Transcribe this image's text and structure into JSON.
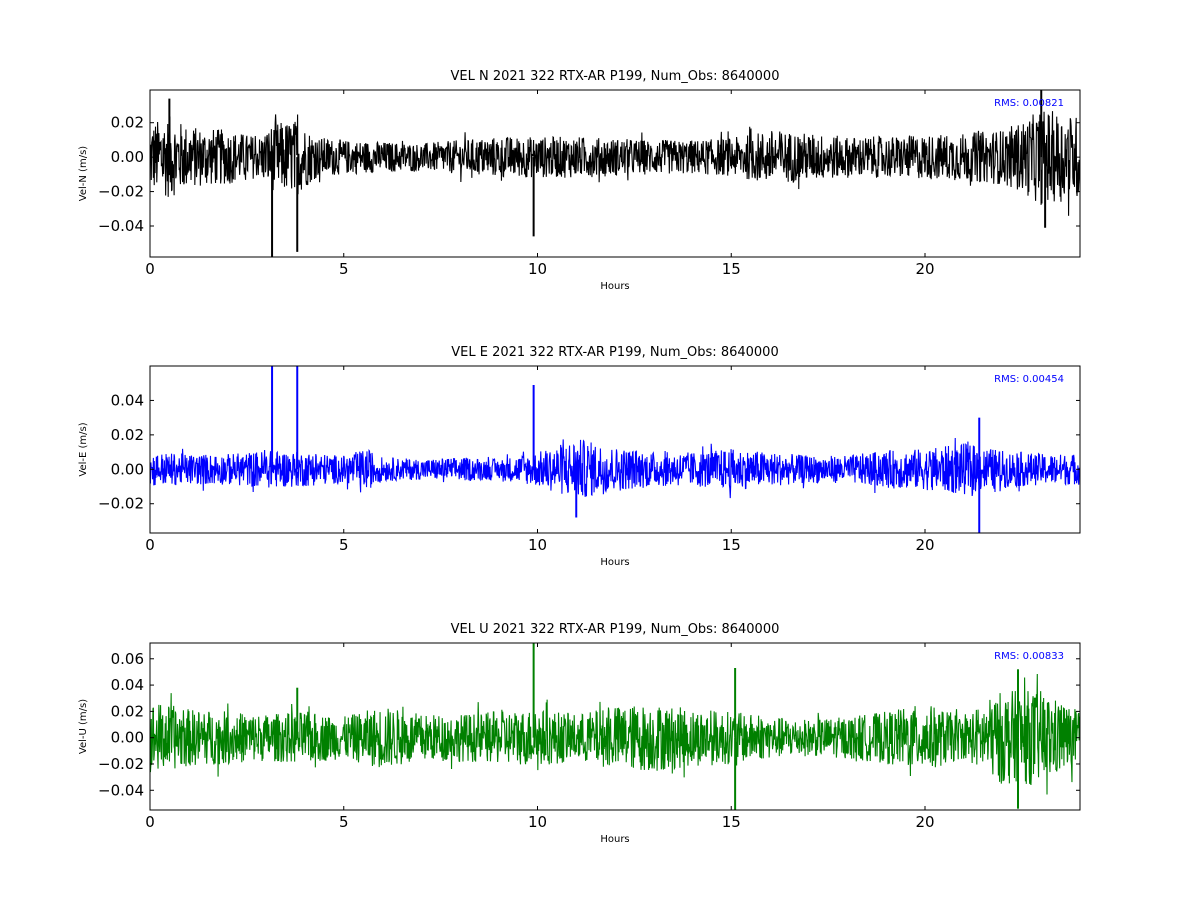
{
  "chart_data": [
    {
      "type": "line",
      "title": "VEL N 2021 322 RTX-AR  P199, Num_Obs: 8640000",
      "xlabel": "Hours",
      "ylabel": "Vel-N (m/s)",
      "xlim": [
        0,
        24
      ],
      "ylim": [
        -0.058,
        0.039
      ],
      "xticks": [
        0,
        5,
        10,
        15,
        20
      ],
      "yticks": [
        -0.04,
        -0.02,
        0.0,
        0.02
      ],
      "ytick_labels": [
        "−0.04",
        "−0.02",
        "0.00",
        "0.02"
      ],
      "color": "#000000",
      "rms_label": "RMS:  0.00821",
      "rms_color": "#0000ff",
      "grid": false,
      "series": [
        {
          "values_note_amplitude": [
            [
              0,
              0.02
            ],
            [
              0.5,
              0.024
            ],
            [
              1,
              0.018
            ],
            [
              2,
              0.016
            ],
            [
              2.8,
              0.012
            ],
            [
              3.2,
              0.02
            ],
            [
              3.8,
              0.022
            ],
            [
              4.3,
              0.012
            ],
            [
              5,
              0.01
            ],
            [
              6,
              0.009
            ],
            [
              7,
              0.008
            ],
            [
              8,
              0.01
            ],
            [
              9,
              0.012
            ],
            [
              10,
              0.012
            ],
            [
              11,
              0.012
            ],
            [
              12,
              0.011
            ],
            [
              13,
              0.01
            ],
            [
              14,
              0.01
            ],
            [
              15,
              0.011
            ],
            [
              16,
              0.016
            ],
            [
              17,
              0.014
            ],
            [
              18,
              0.012
            ],
            [
              19,
              0.012
            ],
            [
              20,
              0.013
            ],
            [
              21,
              0.014
            ],
            [
              22,
              0.016
            ],
            [
              22.6,
              0.022
            ],
            [
              23,
              0.028
            ],
            [
              24,
              0.024
            ]
          ],
          "spikes": [
            [
              0.5,
              0.034
            ],
            [
              3.15,
              -0.058
            ],
            [
              3.8,
              -0.055
            ],
            [
              9.9,
              -0.046
            ],
            [
              23.0,
              0.039
            ],
            [
              23.1,
              -0.041
            ]
          ]
        }
      ]
    },
    {
      "type": "line",
      "title": "VEL E 2021 322 RTX-AR  P199, Num_Obs: 8640000",
      "xlabel": "Hours",
      "ylabel": "Vel-E (m/s)",
      "xlim": [
        0,
        24
      ],
      "ylim": [
        -0.037,
        0.06
      ],
      "xticks": [
        0,
        5,
        10,
        15,
        20
      ],
      "yticks": [
        -0.02,
        0.0,
        0.02,
        0.04
      ],
      "ytick_labels": [
        "−0.02",
        "0.00",
        "0.02",
        "0.04"
      ],
      "color": "#0000ff",
      "rms_label": "RMS:  0.00454",
      "rms_color": "#0000ff",
      "grid": false,
      "series": [
        {
          "values_note_amplitude": [
            [
              0,
              0.01
            ],
            [
              1,
              0.009
            ],
            [
              2,
              0.009
            ],
            [
              3,
              0.011
            ],
            [
              4,
              0.01
            ],
            [
              5,
              0.008
            ],
            [
              5.6,
              0.012
            ],
            [
              6,
              0.007
            ],
            [
              7,
              0.006
            ],
            [
              8,
              0.007
            ],
            [
              9,
              0.006
            ],
            [
              10,
              0.01
            ],
            [
              11,
              0.018
            ],
            [
              12,
              0.013
            ],
            [
              13,
              0.01
            ],
            [
              14,
              0.01
            ],
            [
              15,
              0.012
            ],
            [
              16,
              0.01
            ],
            [
              17,
              0.008
            ],
            [
              18,
              0.008
            ],
            [
              19,
              0.011
            ],
            [
              20,
              0.012
            ],
            [
              21,
              0.015
            ],
            [
              22,
              0.011
            ],
            [
              23,
              0.009
            ],
            [
              24,
              0.009
            ]
          ],
          "spikes": [
            [
              3.15,
              0.06
            ],
            [
              3.8,
              0.06
            ],
            [
              9.9,
              0.049
            ],
            [
              11.0,
              -0.028
            ],
            [
              21.4,
              -0.037
            ],
            [
              21.4,
              0.03
            ]
          ]
        }
      ]
    },
    {
      "type": "line",
      "title": "VEL U 2021 322 RTX-AR  P199, Num_Obs: 8640000",
      "xlabel": "Hours",
      "ylabel": "Vel-U (m/s)",
      "xlim": [
        0,
        24
      ],
      "ylim": [
        -0.055,
        0.072
      ],
      "xticks": [
        0,
        5,
        10,
        15,
        20
      ],
      "yticks": [
        -0.04,
        -0.02,
        0.0,
        0.02,
        0.04,
        0.06
      ],
      "ytick_labels": [
        "−0.04",
        "−0.02",
        "0.00",
        "0.02",
        "0.04",
        "0.06"
      ],
      "color": "#008000",
      "rms_label": "RMS:  0.00833",
      "rms_color": "#0000ff",
      "grid": false,
      "series": [
        {
          "values_note_amplitude": [
            [
              0,
              0.028
            ],
            [
              1,
              0.022
            ],
            [
              2,
              0.02
            ],
            [
              3,
              0.018
            ],
            [
              4,
              0.02
            ],
            [
              5,
              0.016
            ],
            [
              6,
              0.024
            ],
            [
              7,
              0.018
            ],
            [
              8,
              0.018
            ],
            [
              9,
              0.02
            ],
            [
              10,
              0.022
            ],
            [
              11,
              0.018
            ],
            [
              12,
              0.024
            ],
            [
              13,
              0.026
            ],
            [
              14,
              0.022
            ],
            [
              15,
              0.02
            ],
            [
              16,
              0.016
            ],
            [
              17,
              0.014
            ],
            [
              18,
              0.016
            ],
            [
              19,
              0.02
            ],
            [
              20,
              0.026
            ],
            [
              21,
              0.016
            ],
            [
              22,
              0.036
            ],
            [
              23,
              0.036
            ],
            [
              24,
              0.02
            ]
          ],
          "spikes": [
            [
              9.9,
              0.072
            ],
            [
              15.1,
              -0.055
            ],
            [
              15.1,
              0.053
            ],
            [
              3.8,
              0.038
            ],
            [
              22.4,
              -0.054
            ],
            [
              22.4,
              0.052
            ]
          ]
        }
      ]
    }
  ]
}
